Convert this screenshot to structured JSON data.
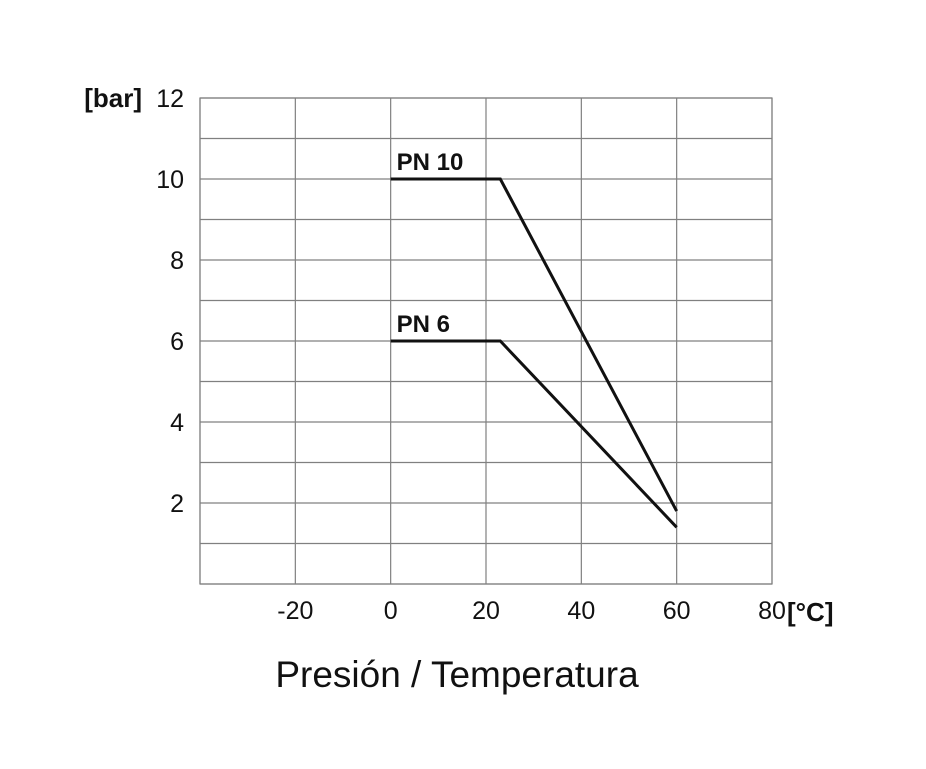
{
  "caption": "Presión / Temperatura",
  "colors": {
    "grid": "#808080",
    "line": "#111111",
    "text": "#111111"
  },
  "chart_data": {
    "type": "line",
    "title": "",
    "xlabel": "[°C]",
    "ylabel": "[bar]",
    "xlim": [
      -40,
      80
    ],
    "ylim": [
      0,
      12
    ],
    "x_ticks": [
      -20,
      0,
      20,
      40,
      60,
      80
    ],
    "y_ticks": [
      2,
      4,
      6,
      8,
      10,
      12
    ],
    "x_tick_labels": [
      "-20",
      "0",
      "20",
      "40",
      "60",
      "80"
    ],
    "y_tick_labels": [
      "2",
      "4",
      "6",
      "8",
      "10",
      "12"
    ],
    "x_grid": [
      -40,
      -20,
      0,
      20,
      40,
      60,
      80
    ],
    "y_grid": [
      0,
      1,
      2,
      3,
      4,
      5,
      6,
      7,
      8,
      9,
      10,
      11,
      12
    ],
    "grid": true,
    "legend": "none",
    "series": [
      {
        "name": "PN 10",
        "points": [
          [
            0,
            10
          ],
          [
            23,
            10
          ],
          [
            60,
            1.8
          ]
        ]
      },
      {
        "name": "PN 6",
        "points": [
          [
            0,
            6
          ],
          [
            23,
            6
          ],
          [
            60,
            1.4
          ]
        ]
      }
    ]
  }
}
